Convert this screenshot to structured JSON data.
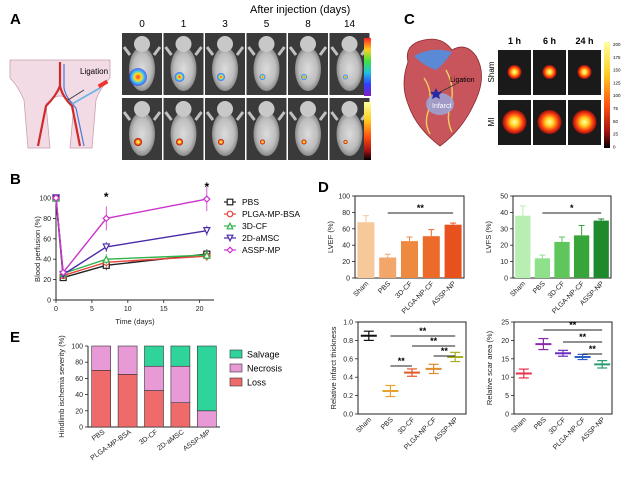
{
  "colors": {
    "pbs": "#222222",
    "plga_mp_bsa": "#e8423a",
    "cf3d": "#2fb34a",
    "amsc2d": "#4a2aa8",
    "assp_mp": "#cc33cc",
    "salvage": "#2fd49a",
    "necrosis": "#e89ad6",
    "loss": "#ef6a6a"
  },
  "panel_a": {
    "letter": "A",
    "header": "After injection (days)",
    "days": [
      "0",
      "1",
      "3",
      "5",
      "8",
      "14"
    ],
    "ligation_label": "Ligation"
  },
  "panel_c": {
    "letter": "C",
    "times": [
      "1 h",
      "6 h",
      "24 h"
    ],
    "rows": [
      "Sham",
      "MI"
    ],
    "heart_labels": {
      "ligation": "Ligation",
      "infarct": "Infarct"
    },
    "colorbar_ticks": [
      "200",
      "175",
      "150",
      "125",
      "100",
      "75",
      "50",
      "25",
      "0"
    ]
  },
  "panel_b": {
    "letter": "B"
  },
  "panel_d": {
    "letter": "D"
  },
  "panel_e": {
    "letter": "E"
  },
  "chart_data": [
    {
      "id": "B",
      "type": "line",
      "xlabel": "Time (days)",
      "ylabel": "Blood perfusion (%)",
      "x": [
        0,
        1,
        7,
        21
      ],
      "xticks": [
        0,
        5,
        10,
        15,
        20
      ],
      "yticks": [
        0,
        20,
        40,
        60,
        80,
        100
      ],
      "xlim": [
        0,
        22
      ],
      "ylim": [
        0,
        100
      ],
      "significance": [
        {
          "x": 7,
          "label": "*"
        },
        {
          "x": 21,
          "label": "*"
        }
      ],
      "series": [
        {
          "name": "PBS",
          "color_key": "pbs",
          "marker": "square",
          "values": [
            100,
            22,
            34,
            45
          ]
        },
        {
          "name": "PLGA-MP-BSA",
          "color_key": "plga_mp_bsa",
          "marker": "circle",
          "values": [
            100,
            24,
            37,
            43
          ]
        },
        {
          "name": "3D-CF",
          "color_key": "cf3d",
          "marker": "triangle-up",
          "values": [
            100,
            26,
            40,
            44
          ]
        },
        {
          "name": "2D-aMSC",
          "color_key": "amsc2d",
          "marker": "triangle-down",
          "values": [
            100,
            25,
            52,
            68
          ]
        },
        {
          "name": "ASSP-MP",
          "color_key": "assp_mp",
          "marker": "diamond",
          "values": [
            100,
            27,
            80,
            99
          ]
        }
      ]
    },
    {
      "id": "D1",
      "type": "bar",
      "ylabel": "LVEF (%)",
      "categories": [
        "Sham",
        "PBS",
        "3D-CF",
        "PLGA-NP-CF",
        "ASSP-NP"
      ],
      "values": [
        68,
        25,
        45,
        51,
        65
      ],
      "errors": [
        8,
        4,
        5,
        8,
        2
      ],
      "colors": [
        "#f6c89a",
        "#f3a66a",
        "#ee8a40",
        "#ec6a2a",
        "#e8501e"
      ],
      "yticks": [
        0,
        20,
        40,
        60,
        80,
        100
      ],
      "ylim": [
        0,
        100
      ],
      "significance": [
        {
          "from": 1,
          "to": 4,
          "label": "**"
        }
      ]
    },
    {
      "id": "D2",
      "type": "bar",
      "ylabel": "LVFS (%)",
      "categories": [
        "Sham",
        "PBS",
        "3D-CF",
        "PLGA-NP-CF",
        "ASSP-NP"
      ],
      "values": [
        38,
        12,
        22,
        26,
        35
      ],
      "errors": [
        6,
        2,
        3,
        6,
        1
      ],
      "colors": [
        "#b8eeb2",
        "#8fe08a",
        "#5ec65b",
        "#37a53a",
        "#1e8a2c"
      ],
      "yticks": [
        0,
        10,
        20,
        30,
        40,
        50
      ],
      "ylim": [
        0,
        50
      ],
      "significance": [
        {
          "from": 1,
          "to": 4,
          "label": "*"
        }
      ]
    },
    {
      "id": "D3",
      "type": "scatter",
      "ylabel": "Relative infarct thickness",
      "categories": [
        "Sham",
        "PBS",
        "3D-CF",
        "PLGA-NP-CF",
        "ASSP-NP"
      ],
      "values": [
        0.85,
        0.25,
        0.45,
        0.49,
        0.62
      ],
      "errors": [
        0.05,
        0.06,
        0.04,
        0.05,
        0.05
      ],
      "colors": [
        "#111111",
        "#e8a030",
        "#e05a28",
        "#e08a30",
        "#a8b020"
      ],
      "yticks": [
        0.0,
        0.2,
        0.4,
        0.6,
        0.8,
        1.0
      ],
      "ylim": [
        0,
        1.0
      ],
      "significance": [
        {
          "from": 1,
          "to": 2,
          "label": "**"
        },
        {
          "from": 1,
          "to": 4,
          "label": "**"
        },
        {
          "from": 2,
          "to": 4,
          "label": "**"
        },
        {
          "from": 3,
          "to": 4,
          "label": "**"
        }
      ]
    },
    {
      "id": "D4",
      "type": "scatter",
      "ylabel": "Relative scar area (%)",
      "categories": [
        "Sham",
        "PBS",
        "3D-CF",
        "PLGA-NP-CF",
        "ASSP-NP"
      ],
      "values": [
        11,
        19,
        16.5,
        15.5,
        13.5
      ],
      "errors": [
        1.2,
        1.5,
        0.8,
        0.7,
        1.0
      ],
      "colors": [
        "#e8304a",
        "#8a2aa8",
        "#6a30c0",
        "#2a60c8",
        "#2a9a70"
      ],
      "yticks": [
        0,
        5,
        10,
        15,
        20,
        25
      ],
      "ylim": [
        0,
        25
      ],
      "significance": [
        {
          "from": 1,
          "to": 4,
          "label": "**"
        },
        {
          "from": 2,
          "to": 4,
          "label": "**"
        },
        {
          "from": 3,
          "to": 4,
          "label": "**"
        }
      ]
    },
    {
      "id": "E",
      "type": "bar",
      "stacked": true,
      "ylabel": "Hindlimb ischemia severity (%)",
      "categories": [
        "PBS",
        "PLGA-MP-BSA",
        "3D-CF",
        "2D-aMSC",
        "ASSP-MP"
      ],
      "yticks": [
        0,
        20,
        40,
        60,
        80,
        100
      ],
      "ylim": [
        0,
        100
      ],
      "series": [
        {
          "name": "Loss",
          "color_key": "loss",
          "values": [
            70,
            65,
            45,
            30,
            0
          ]
        },
        {
          "name": "Necrosis",
          "color_key": "necrosis",
          "values": [
            30,
            35,
            30,
            45,
            20
          ]
        },
        {
          "name": "Salvage",
          "color_key": "salvage",
          "values": [
            0,
            0,
            25,
            25,
            80
          ]
        }
      ],
      "legend_order": [
        "Salvage",
        "Necrosis",
        "Loss"
      ]
    }
  ]
}
